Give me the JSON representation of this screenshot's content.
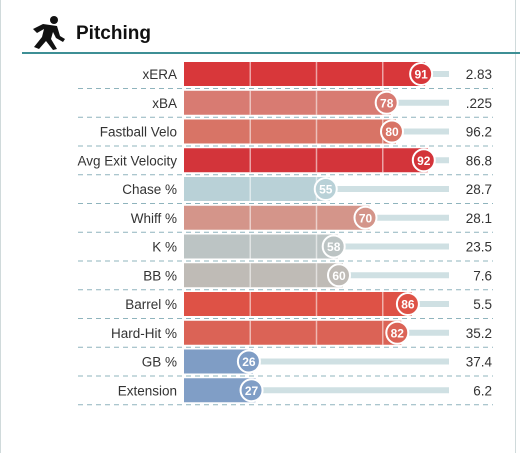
{
  "section": {
    "title": "Pitching",
    "icon": "pitcher-icon"
  },
  "chart_data": {
    "type": "bar",
    "orientation": "horizontal",
    "title": "Pitching",
    "xlim": [
      0,
      100
    ],
    "rows": [
      {
        "label": "xERA",
        "percentile": 91,
        "value": "2.83",
        "color": "#d8373a"
      },
      {
        "label": "xBA",
        "percentile": 78,
        "value": ".225",
        "color": "#d87b72"
      },
      {
        "label": "Fastball Velo",
        "percentile": 80,
        "value": "96.2",
        "color": "#d87466"
      },
      {
        "label": "Avg Exit Velocity",
        "percentile": 92,
        "value": "86.8",
        "color": "#d3343a"
      },
      {
        "label": "Chase %",
        "percentile": 55,
        "value": "28.7",
        "color": "#b9d1d7"
      },
      {
        "label": "Whiff %",
        "percentile": 70,
        "value": "28.1",
        "color": "#d4958a"
      },
      {
        "label": "K %",
        "percentile": 58,
        "value": "23.5",
        "color": "#bcc4c4"
      },
      {
        "label": "BB %",
        "percentile": 60,
        "value": "7.6",
        "color": "#bfbbb6"
      },
      {
        "label": "Barrel %",
        "percentile": 86,
        "value": "5.5",
        "color": "#de5246"
      },
      {
        "label": "Hard-Hit %",
        "percentile": 82,
        "value": "35.2",
        "color": "#db6356"
      },
      {
        "label": "GB %",
        "percentile": 26,
        "value": "37.4",
        "color": "#7f9dc5"
      },
      {
        "label": "Extension",
        "percentile": 27,
        "value": "6.2",
        "color": "#809ec6"
      }
    ]
  }
}
